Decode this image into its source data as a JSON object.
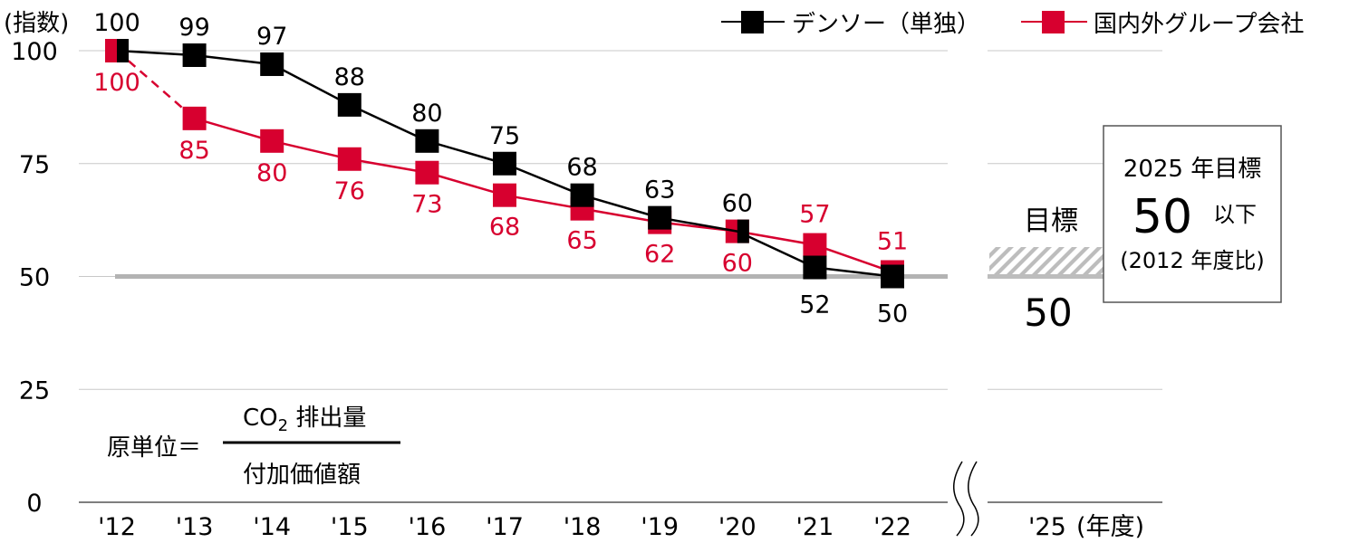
{
  "chart_data": {
    "type": "line",
    "title": "",
    "ylabel": "(指数)",
    "xlabel": "(年度)",
    "ylim": [
      0,
      100
    ],
    "yticks": [
      0,
      25,
      50,
      75,
      100
    ],
    "grid": true,
    "legend_position": "top-right",
    "categories": [
      "'12",
      "'13",
      "'14",
      "'15",
      "'16",
      "'17",
      "'18",
      "'19",
      "'20",
      "'21",
      "'22"
    ],
    "target_category": "'25",
    "series": [
      {
        "name": "デンソー（単独）",
        "color": "#000000",
        "values": [
          100,
          99,
          97,
          88,
          80,
          75,
          68,
          63,
          60,
          52,
          50
        ]
      },
      {
        "name": "国内外グループ会社",
        "color": "#d7002f",
        "values": [
          100,
          85,
          80,
          76,
          73,
          68,
          65,
          62,
          60,
          57,
          51
        ],
        "first_segment_dashed": true
      }
    ],
    "reference_line": {
      "value": 50,
      "color": "#b3b3b3"
    },
    "target": {
      "label": "目標",
      "value": 50
    }
  },
  "labels": {
    "y_axis_unit": "(指数)",
    "x_axis_unit": "(年度)",
    "legend": [
      "デンソー（単独）",
      "国内外グループ会社"
    ],
    "target_label": "目標",
    "target_value": "50",
    "target_box": {
      "line1": "2025 年目標",
      "big_value": "50",
      "suffix": "以下",
      "line3": "(2012 年度比)"
    },
    "formula": {
      "lhs": "原単位＝",
      "numerator_co": "CO",
      "numerator_sub": "2",
      "numerator_rest": " 排出量",
      "denominator": "付加価値額"
    }
  }
}
